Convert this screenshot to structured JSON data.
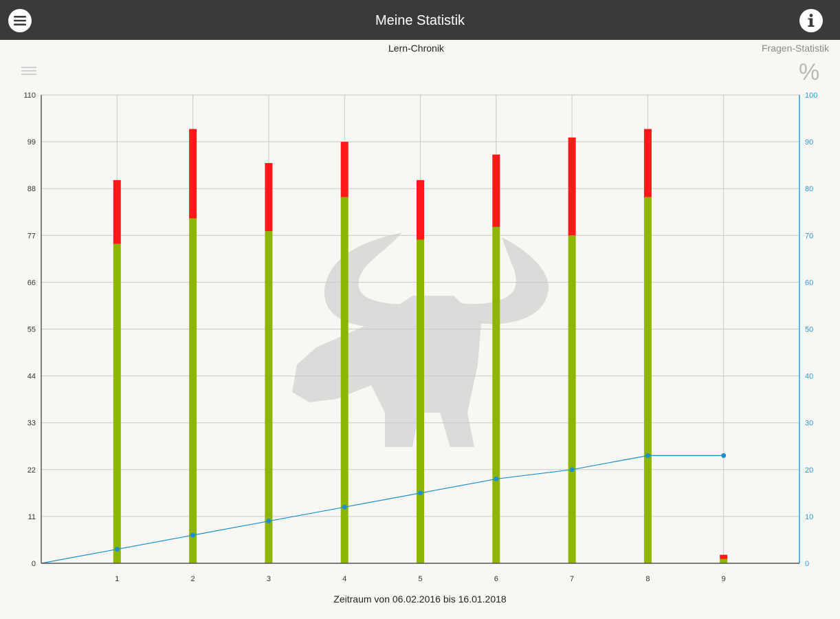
{
  "app": {
    "title": "Meine Statistik"
  },
  "toolbar": {
    "menu_icon": "hamburger-menu-icon",
    "info_icon": "info-icon"
  },
  "tabs": [
    {
      "label": "Lern-Chronik",
      "active": true
    },
    {
      "label": "Fragen-Statistik",
      "active": false
    }
  ],
  "icons": {
    "list": "list-icon",
    "percent": "%"
  },
  "colors": {
    "header_bg": "#3a3a3a",
    "correct": "#8db600",
    "wrong": "#ff1a1a",
    "line": "#1f8fd0",
    "right_axis": "#2a9ad6",
    "background": "#f8f7f4"
  },
  "chart_data": {
    "type": "bar",
    "stacked": true,
    "categories": [
      "1",
      "2",
      "3",
      "4",
      "5",
      "6",
      "7",
      "8",
      "9"
    ],
    "series": [
      {
        "values": [
          75,
          81,
          78,
          86,
          76,
          79,
          77,
          86,
          1
        ],
        "color": "#8db600"
      },
      {
        "values": [
          15,
          21,
          16,
          13,
          14,
          17,
          23,
          16,
          1
        ],
        "color": "#ff1a1a"
      }
    ],
    "line_series": {
      "axis": "right",
      "color": "#1f8fd0",
      "x": [
        0,
        1,
        2,
        3,
        4,
        5,
        6,
        7,
        8,
        9
      ],
      "values": [
        0,
        3,
        6,
        9,
        12,
        15,
        18,
        20,
        23,
        23
      ]
    },
    "y_left": {
      "ticks": [
        0,
        11,
        22,
        33,
        44,
        55,
        66,
        77,
        88,
        99,
        110
      ],
      "range": [
        0,
        110
      ]
    },
    "y_right": {
      "ticks": [
        0,
        10,
        20,
        30,
        40,
        50,
        60,
        70,
        80,
        90,
        100
      ],
      "range": [
        0,
        100
      ]
    },
    "x_range": [
      0,
      10
    ],
    "xlabel": "Zeitraum von 06.02.2016 bis 16.01.2018",
    "grid": true,
    "watermark": "buffalo-logo"
  }
}
